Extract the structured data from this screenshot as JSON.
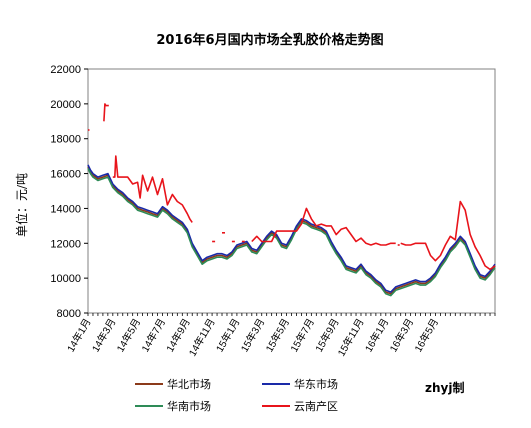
{
  "chart_data": {
    "type": "line",
    "title": "2016年6月国内市场全乳胶价格走势图",
    "ylabel": "单位：元/吨",
    "ylim": [
      8000,
      22000
    ],
    "yticks": [
      8000,
      10000,
      12000,
      14000,
      16000,
      18000,
      20000,
      22000
    ],
    "xlim": [
      0,
      82
    ],
    "x_tick_labels": [
      "14年1月",
      "14年3月",
      "14年5月",
      "14年7月",
      "14年9月",
      "14年11月",
      "15年1月",
      "15年3月",
      "15年5月",
      "15年7月",
      "15年9月",
      "15年11月",
      "16年1月",
      "16年3月",
      "16年5月"
    ],
    "x_tick_positions": [
      0,
      5,
      10,
      15,
      20,
      25,
      30,
      35,
      40,
      45,
      50,
      55,
      60,
      65,
      70
    ],
    "grid": false,
    "legend_position": "bottom",
    "series": [
      {
        "name": "华北市场",
        "color": "#8b3a1a",
        "x": [
          0,
          0.5,
          1,
          2,
          3,
          4,
          5,
          6,
          7,
          8,
          9,
          10,
          11,
          12,
          13,
          14,
          15,
          16,
          17,
          18,
          19,
          20,
          21,
          22,
          23,
          24,
          25,
          26,
          27,
          28,
          29,
          30,
          31,
          32,
          33,
          34,
          35,
          36,
          37,
          38,
          39,
          40,
          41,
          42,
          43,
          44,
          45,
          46,
          47,
          48,
          49,
          50,
          51,
          52,
          53,
          54,
          55,
          56,
          57,
          58,
          59,
          60,
          61,
          62,
          63,
          64,
          65,
          66,
          67,
          68,
          69,
          70,
          71,
          72,
          73,
          74,
          75,
          76,
          77,
          78,
          79,
          80,
          81,
          82
        ],
        "y": [
          16400,
          16100,
          15900,
          15700,
          15800,
          15900,
          15300,
          15000,
          14800,
          14500,
          14300,
          14000,
          13900,
          13800,
          13700,
          13600,
          14000,
          13800,
          13500,
          13300,
          13100,
          12700,
          11900,
          11400,
          10900,
          11100,
          11200,
          11300,
          11300,
          11200,
          11400,
          11800,
          11900,
          12000,
          11600,
          11500,
          11900,
          12300,
          12600,
          12400,
          11900,
          11800,
          12300,
          12900,
          13300,
          13200,
          13000,
          12900,
          12800,
          12600,
          12000,
          11500,
          11100,
          10600,
          10500,
          10400,
          10700,
          10300,
          10100,
          9800,
          9600,
          9200,
          9100,
          9400,
          9500,
          9600,
          9700,
          9800,
          9700,
          9700,
          9900,
          10200,
          10700,
          11100,
          11600,
          11900,
          12300,
          12000,
          11300,
          10600,
          10100,
          10000,
          10300,
          10700
        ]
      },
      {
        "name": "华东市场",
        "color": "#1a2aa8",
        "x": [
          0,
          0.5,
          1,
          2,
          3,
          4,
          5,
          6,
          7,
          8,
          9,
          10,
          11,
          12,
          13,
          14,
          15,
          16,
          17,
          18,
          19,
          20,
          21,
          22,
          23,
          24,
          25,
          26,
          27,
          28,
          29,
          30,
          31,
          32,
          33,
          34,
          35,
          36,
          37,
          38,
          39,
          40,
          41,
          42,
          43,
          44,
          45,
          46,
          47,
          48,
          49,
          50,
          51,
          52,
          53,
          54,
          55,
          56,
          57,
          58,
          59,
          60,
          61,
          62,
          63,
          64,
          65,
          66,
          67,
          68,
          69,
          70,
          71,
          72,
          73,
          74,
          75,
          76,
          77,
          78,
          79,
          80,
          81,
          82
        ],
        "y": [
          16500,
          16200,
          16000,
          15800,
          15900,
          16000,
          15400,
          15100,
          14900,
          14600,
          14400,
          14100,
          14000,
          13900,
          13800,
          13700,
          14100,
          13900,
          13600,
          13400,
          13200,
          12800,
          12000,
          11500,
          11000,
          11200,
          11300,
          11400,
          11400,
          11300,
          11500,
          11900,
          12000,
          12100,
          11700,
          11600,
          12000,
          12400,
          12700,
          12500,
          12000,
          11900,
          12400,
          13000,
          13400,
          13300,
          13100,
          13000,
          12900,
          12700,
          12100,
          11600,
          11200,
          10700,
          10600,
          10500,
          10800,
          10400,
          10200,
          9900,
          9700,
          9300,
          9200,
          9500,
          9600,
          9700,
          9800,
          9900,
          9800,
          9800,
          10000,
          10300,
          10800,
          11200,
          11700,
          12000,
          12400,
          12100,
          11400,
          10700,
          10200,
          10100,
          10400,
          10800
        ]
      },
      {
        "name": "华南市场",
        "color": "#2e8b57",
        "x": [
          0,
          0.5,
          1,
          2,
          3,
          4,
          5,
          6,
          7,
          8,
          9,
          10,
          11,
          12,
          13,
          14,
          15,
          16,
          17,
          18,
          19,
          20,
          21,
          22,
          23,
          24,
          25,
          26,
          27,
          28,
          29,
          30,
          31,
          32,
          33,
          34,
          35,
          36,
          37,
          38,
          39,
          40,
          41,
          42,
          43,
          44,
          45,
          46,
          47,
          48,
          49,
          50,
          51,
          52,
          53,
          54,
          55,
          56,
          57,
          58,
          59,
          60,
          61,
          62,
          63,
          64,
          65,
          66,
          67,
          68,
          69,
          70,
          71,
          72,
          73,
          74,
          75,
          76,
          77,
          78,
          79,
          80,
          81,
          82
        ],
        "y": [
          16300,
          16000,
          15800,
          15600,
          15700,
          15800,
          15200,
          14900,
          14700,
          14400,
          14200,
          13900,
          13800,
          13700,
          13600,
          13500,
          13900,
          13700,
          13400,
          13200,
          13000,
          12600,
          11800,
          11300,
          10800,
          11000,
          11100,
          11200,
          11200,
          11100,
          11300,
          11700,
          11800,
          11900,
          11500,
          11400,
          11800,
          12200,
          12500,
          12300,
          11800,
          11700,
          12200,
          12800,
          13200,
          13100,
          12900,
          12800,
          12700,
          12500,
          11900,
          11400,
          11000,
          10500,
          10400,
          10300,
          10600,
          10200,
          10000,
          9700,
          9500,
          9100,
          9000,
          9300,
          9400,
          9500,
          9600,
          9700,
          9600,
          9600,
          9800,
          10100,
          10600,
          11000,
          11500,
          11800,
          12200,
          11900,
          11200,
          10500,
          10000,
          9900,
          10200,
          10600
        ]
      },
      {
        "name": "云南产区",
        "color": "#e8141b",
        "segments": [
          {
            "x": [
              0,
              0.3
            ],
            "y": [
              18500,
              18500
            ]
          },
          {
            "x": [
              3.2,
              3.4,
              3.6,
              4.2
            ],
            "y": [
              19000,
              20000,
              19900,
              19900
            ]
          },
          {
            "x": [
              5,
              5.4,
              5.6,
              6,
              7,
              8,
              9,
              10,
              10.5,
              11,
              12,
              13,
              14,
              15,
              16,
              17,
              18,
              19,
              20,
              20.5,
              21
            ],
            "y": [
              15800,
              15800,
              17000,
              15800,
              15800,
              15800,
              15400,
              15500,
              14600,
              15900,
              15000,
              15800,
              14800,
              15700,
              14200,
              14800,
              14400,
              14200,
              13700,
              13400,
              13200
            ]
          },
          {
            "x": [
              25,
              25.6
            ],
            "y": [
              12100,
              12100
            ]
          },
          {
            "x": [
              27,
              27.6
            ],
            "y": [
              12600,
              12600
            ]
          },
          {
            "x": [
              29,
              29.6
            ],
            "y": [
              12100,
              12100
            ]
          },
          {
            "x": [
              31,
              31.6
            ],
            "y": [
              12100,
              12100
            ]
          },
          {
            "x": [
              33,
              34,
              35,
              36,
              37,
              38,
              39,
              40,
              41,
              42,
              43,
              44,
              45,
              46,
              47,
              48,
              49,
              50,
              51,
              52,
              53,
              54,
              55,
              56,
              57,
              58,
              59,
              60,
              61,
              62
            ],
            "y": [
              12100,
              12400,
              12100,
              12100,
              12100,
              12700,
              12700,
              12700,
              12700,
              12700,
              13100,
              14000,
              13400,
              13000,
              13100,
              13000,
              13000,
              12500,
              12800,
              12900,
              12500,
              12100,
              12300,
              12000,
              11900,
              12000,
              11900,
              11900,
              12000,
              12000
            ]
          },
          {
            "x": [
              62.4,
              62.8
            ],
            "y": [
              11900,
              11900
            ]
          },
          {
            "x": [
              63,
              64,
              65,
              66,
              67,
              68,
              69,
              70,
              71,
              72,
              73,
              74,
              75,
              76,
              77,
              78,
              79,
              80,
              81,
              82
            ],
            "y": [
              12000,
              11900,
              11900,
              12000,
              12000,
              12000,
              11300,
              11000,
              11300,
              11900,
              12400,
              12200,
              14400,
              13900,
              12500,
              11800,
              11300,
              10700,
              10500,
              10700
            ]
          }
        ]
      }
    ]
  },
  "legend": [
    {
      "label": "华北市场",
      "color": "#8b3a1a"
    },
    {
      "label": "华东市场",
      "color": "#1a2aa8"
    },
    {
      "label": "华南市场",
      "color": "#2e8b57"
    },
    {
      "label": "云南产区",
      "color": "#e8141b"
    }
  ],
  "credit": "zhyj制"
}
